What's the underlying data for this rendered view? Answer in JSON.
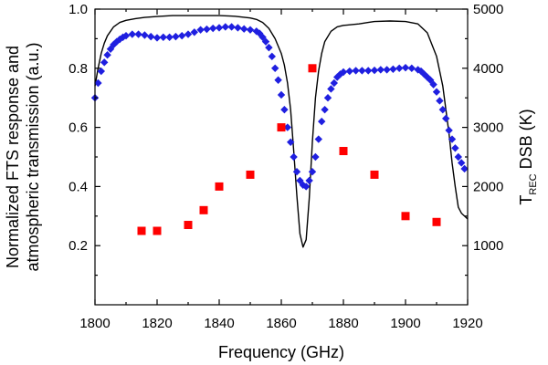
{
  "chart_data": {
    "type": "scatter",
    "xlabel": "Frequency (GHz)",
    "ylabel_left": [
      "Normalized FTS response and",
      "atmospheric transmission (a.u.)"
    ],
    "ylabel_right": {
      "main": "T",
      "sub": "REC",
      "suffix": " DSB (K)"
    },
    "xlim": [
      1800,
      1920
    ],
    "ylim_left": [
      0,
      1.0
    ],
    "ylim_right": [
      0,
      5000
    ],
    "x_ticks": [
      1800,
      1820,
      1840,
      1860,
      1880,
      1900,
      1920
    ],
    "y_left_ticks": [
      0.2,
      0.4,
      0.6,
      0.8,
      1.0
    ],
    "y_left_tick_labels": [
      "0.2",
      "0.4",
      "0.6",
      "0.8",
      "1.0"
    ],
    "y_right_ticks": [
      1000,
      2000,
      3000,
      4000,
      5000
    ],
    "colors": {
      "atmosphere": "#000000",
      "fts": "#1f1fe0",
      "trec": "#ff0000"
    },
    "series": [
      {
        "name": "Atmospheric transmission",
        "kind": "line",
        "axis": "left",
        "x": [
          1800,
          1801,
          1802,
          1803,
          1804,
          1806,
          1808,
          1810,
          1813,
          1816,
          1820,
          1825,
          1830,
          1835,
          1840,
          1845,
          1850,
          1852,
          1854,
          1856,
          1858,
          1860,
          1861,
          1862,
          1863,
          1864,
          1865,
          1866,
          1867,
          1868,
          1869,
          1870,
          1871,
          1872,
          1873,
          1874,
          1876,
          1878,
          1880,
          1882,
          1885,
          1888,
          1890,
          1895,
          1900,
          1904,
          1907,
          1910,
          1912,
          1914,
          1915,
          1916,
          1917,
          1918,
          1919,
          1920
        ],
        "y": [
          0.74,
          0.8,
          0.85,
          0.885,
          0.91,
          0.94,
          0.955,
          0.962,
          0.968,
          0.972,
          0.975,
          0.978,
          0.978,
          0.978,
          0.978,
          0.976,
          0.97,
          0.965,
          0.955,
          0.935,
          0.9,
          0.85,
          0.81,
          0.75,
          0.66,
          0.52,
          0.37,
          0.24,
          0.195,
          0.22,
          0.36,
          0.55,
          0.7,
          0.79,
          0.85,
          0.89,
          0.925,
          0.94,
          0.945,
          0.947,
          0.95,
          0.955,
          0.958,
          0.96,
          0.958,
          0.95,
          0.92,
          0.84,
          0.74,
          0.58,
          0.48,
          0.4,
          0.33,
          0.31,
          0.3,
          0.29
        ]
      },
      {
        "name": "Normalized FTS response",
        "kind": "scatter",
        "marker": "diamond",
        "axis": "left",
        "x": [
          1800,
          1801,
          1802,
          1803,
          1804,
          1805,
          1806,
          1807,
          1808,
          1809,
          1810,
          1812,
          1814,
          1816,
          1818,
          1820,
          1822,
          1824,
          1826,
          1828,
          1830,
          1832,
          1834,
          1836,
          1838,
          1840,
          1842,
          1844,
          1846,
          1848,
          1850,
          1852,
          1853,
          1854,
          1855,
          1856,
          1857,
          1858,
          1859,
          1860,
          1861,
          1862,
          1863,
          1864,
          1865,
          1866,
          1867,
          1868,
          1869,
          1870,
          1871,
          1872,
          1873,
          1874,
          1875,
          1876,
          1877,
          1878,
          1879,
          1880,
          1882,
          1884,
          1886,
          1888,
          1890,
          1892,
          1894,
          1896,
          1898,
          1900,
          1902,
          1904,
          1905,
          1906,
          1907,
          1908,
          1909,
          1910,
          1911,
          1912,
          1913,
          1914,
          1915,
          1916,
          1917,
          1918,
          1919
        ],
        "y": [
          0.7,
          0.75,
          0.79,
          0.82,
          0.845,
          0.865,
          0.88,
          0.89,
          0.898,
          0.905,
          0.91,
          0.915,
          0.915,
          0.912,
          0.907,
          0.903,
          0.905,
          0.905,
          0.907,
          0.91,
          0.915,
          0.922,
          0.93,
          0.932,
          0.935,
          0.937,
          0.94,
          0.94,
          0.937,
          0.933,
          0.93,
          0.925,
          0.918,
          0.905,
          0.89,
          0.87,
          0.84,
          0.8,
          0.76,
          0.71,
          0.66,
          0.6,
          0.55,
          0.5,
          0.45,
          0.42,
          0.405,
          0.4,
          0.42,
          0.45,
          0.5,
          0.56,
          0.62,
          0.66,
          0.7,
          0.73,
          0.75,
          0.77,
          0.78,
          0.787,
          0.79,
          0.792,
          0.792,
          0.792,
          0.793,
          0.795,
          0.795,
          0.797,
          0.8,
          0.802,
          0.8,
          0.795,
          0.79,
          0.78,
          0.77,
          0.76,
          0.745,
          0.72,
          0.69,
          0.66,
          0.63,
          0.59,
          0.56,
          0.53,
          0.5,
          0.48,
          0.46
        ]
      },
      {
        "name": "T_REC DSB",
        "kind": "scatter",
        "marker": "square",
        "axis": "right",
        "x": [
          1815,
          1820,
          1830,
          1835,
          1840,
          1850,
          1860,
          1870,
          1880,
          1890,
          1900,
          1910
        ],
        "y": [
          1250,
          1250,
          1350,
          1600,
          2000,
          2200,
          3000,
          4000,
          2600,
          2200,
          1500,
          1400
        ]
      }
    ]
  }
}
